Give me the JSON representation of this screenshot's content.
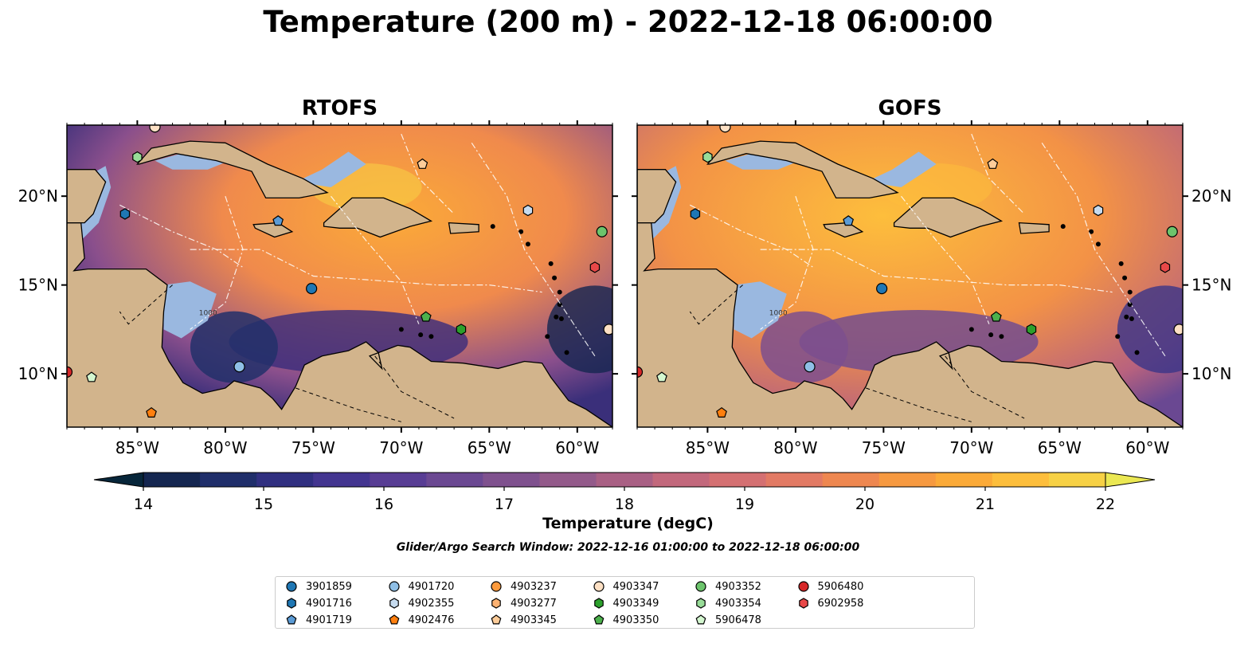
{
  "title": "Temperature (200 m) - 2022-12-18 06:00:00",
  "panels": [
    {
      "title": "RTOFS"
    },
    {
      "title": "GOFS"
    }
  ],
  "map": {
    "lon_ticks": [
      "85°W",
      "80°W",
      "75°W",
      "70°W",
      "65°W",
      "60°W"
    ],
    "lat_ticks": [
      "20°N",
      "15°N",
      "10°N"
    ],
    "lon_range": [
      -89,
      -58
    ],
    "lat_range": [
      7,
      24
    ],
    "contour_label": "1000",
    "colors": {
      "land": "#d2b48c",
      "shelf": "#9ab8e0",
      "ocean_deep": "#0f2a3a"
    }
  },
  "colorbar": {
    "label": "Temperature (degC)",
    "ticks": [
      "14",
      "15",
      "16",
      "17",
      "18",
      "19",
      "20",
      "21",
      "22"
    ],
    "range": [
      14,
      22
    ],
    "colors": [
      "#07263a",
      "#142650",
      "#1f2e6a",
      "#302f80",
      "#433590",
      "#583d94",
      "#6b4892",
      "#7f518e",
      "#935a8a",
      "#a96084",
      "#c2687c",
      "#d47072",
      "#e27a64",
      "#ee8750",
      "#f69940",
      "#fbaa38",
      "#fdbe3c",
      "#f7d145",
      "#ebe853"
    ]
  },
  "search_window": "Glider/Argo Search Window: 2022-12-16 01:00:00 to 2022-12-18 06:00:00",
  "legend": [
    {
      "label": "3901859",
      "color": "#1f77b4",
      "marker": "circle"
    },
    {
      "label": "4901716",
      "color": "#1f77b4",
      "marker": "hexagon"
    },
    {
      "label": "4901719",
      "color": "#5b9bd5",
      "marker": "pentagon"
    },
    {
      "label": "4901720",
      "color": "#8fbfe6",
      "marker": "circle"
    },
    {
      "label": "4902355",
      "color": "#c6dbef",
      "marker": "hexagon"
    },
    {
      "label": "4902476",
      "color": "#ff7f0e",
      "marker": "pentagon"
    },
    {
      "label": "4903237",
      "color": "#fd9a3c",
      "marker": "circle"
    },
    {
      "label": "4903277",
      "color": "#fdb272",
      "marker": "hexagon"
    },
    {
      "label": "4903345",
      "color": "#fdcc99",
      "marker": "pentagon"
    },
    {
      "label": "4903347",
      "color": "#fde0c4",
      "marker": "circle"
    },
    {
      "label": "4903349",
      "color": "#2ca02c",
      "marker": "hexagon"
    },
    {
      "label": "4903350",
      "color": "#4cb04c",
      "marker": "pentagon"
    },
    {
      "label": "4903352",
      "color": "#6cc46c",
      "marker": "circle"
    },
    {
      "label": "4903354",
      "color": "#98dc98",
      "marker": "hexagon"
    },
    {
      "label": "5906478",
      "color": "#d4f7d0",
      "marker": "pentagon"
    },
    {
      "label": "5906480",
      "color": "#d62728",
      "marker": "circle"
    },
    {
      "label": "6902958",
      "color": "#e84848",
      "marker": "hexagon"
    }
  ],
  "floats": [
    {
      "id": "3901859",
      "lon": -75.1,
      "lat": 14.8
    },
    {
      "id": "4901716",
      "lon": -85.7,
      "lat": 19.0
    },
    {
      "id": "4901719",
      "lon": -77.0,
      "lat": 18.6
    },
    {
      "id": "4901720",
      "lon": -79.2,
      "lat": 10.4
    },
    {
      "id": "4902355",
      "lon": -62.8,
      "lat": 19.2
    },
    {
      "id": "4902476",
      "lon": -84.2,
      "lat": 7.8
    },
    {
      "id": "4903345",
      "lon": -68.8,
      "lat": 21.8
    },
    {
      "id": "4903347",
      "lon": -58.2,
      "lat": 12.5
    },
    {
      "id": "4903349",
      "lon": -66.6,
      "lat": 12.5
    },
    {
      "id": "4903350",
      "lon": -68.6,
      "lat": 13.2
    },
    {
      "id": "4903352",
      "lon": -58.6,
      "lat": 18.0
    },
    {
      "id": "4903354",
      "lon": -85.0,
      "lat": 22.2
    },
    {
      "id": "5906478",
      "lon": -87.6,
      "lat": 9.8
    },
    {
      "id": "5906480",
      "lon": -89.0,
      "lat": 10.1
    },
    {
      "id": "6902958",
      "lon": -59.0,
      "lat": 16.0
    },
    {
      "id": "4903347",
      "lon": -84.0,
      "lat": 23.9
    }
  ]
}
